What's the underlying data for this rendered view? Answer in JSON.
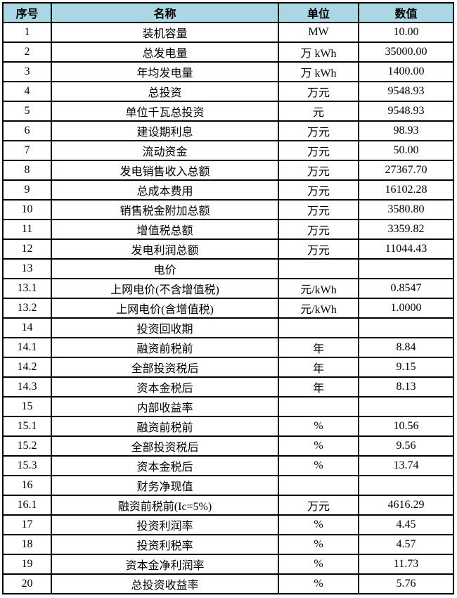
{
  "table": {
    "headers": [
      "序号",
      "名称",
      "单位",
      "数值"
    ],
    "rows": [
      {
        "no": "1",
        "name": "装机容量",
        "unit": "MW",
        "value": "10.00"
      },
      {
        "no": "2",
        "name": "总发电量",
        "unit": "万 kWh",
        "value": "35000.00"
      },
      {
        "no": "3",
        "name": "年均发电量",
        "unit": "万 kWh",
        "value": "1400.00"
      },
      {
        "no": "4",
        "name": "总投资",
        "unit": "万元",
        "value": "9548.93"
      },
      {
        "no": "5",
        "name": "单位千瓦总投资",
        "unit": "元",
        "value": "9548.93"
      },
      {
        "no": "6",
        "name": "建设期利息",
        "unit": "万元",
        "value": "98.93"
      },
      {
        "no": "7",
        "name": "流动资金",
        "unit": "万元",
        "value": "50.00"
      },
      {
        "no": "8",
        "name": "发电销售收入总额",
        "unit": "万元",
        "value": "27367.70"
      },
      {
        "no": "9",
        "name": "总成本费用",
        "unit": "万元",
        "value": "16102.28"
      },
      {
        "no": "10",
        "name": "销售税金附加总额",
        "unit": "万元",
        "value": "3580.80"
      },
      {
        "no": "11",
        "name": "增值税总额",
        "unit": "万元",
        "value": "3359.82"
      },
      {
        "no": "12",
        "name": "发电利润总额",
        "unit": "万元",
        "value": "11044.43"
      },
      {
        "no": "13",
        "name": "电价",
        "unit": "",
        "value": ""
      },
      {
        "no": "13.1",
        "name": "上网电价(不含增值税)",
        "unit": "元/kWh",
        "value": "0.8547"
      },
      {
        "no": "13.2",
        "name": "上网电价(含增值税)",
        "unit": "元/kWh",
        "value": "1.0000"
      },
      {
        "no": "14",
        "name": "投资回收期",
        "unit": "",
        "value": ""
      },
      {
        "no": "14.1",
        "name": "融资前税前",
        "unit": "年",
        "value": "8.84"
      },
      {
        "no": "14.2",
        "name": "全部投资税后",
        "unit": "年",
        "value": "9.15"
      },
      {
        "no": "14.3",
        "name": "资本金税后",
        "unit": "年",
        "value": "8.13"
      },
      {
        "no": "15",
        "name": "内部收益率",
        "unit": "",
        "value": ""
      },
      {
        "no": "15.1",
        "name": "融资前税前",
        "unit": "%",
        "value": "10.56"
      },
      {
        "no": "15.2",
        "name": "全部投资税后",
        "unit": "%",
        "value": "9.56"
      },
      {
        "no": "15.3",
        "name": "资本金税后",
        "unit": "%",
        "value": "13.74"
      },
      {
        "no": "16",
        "name": "财务净现值",
        "unit": "",
        "value": ""
      },
      {
        "no": "16.1",
        "name": "融资前税前(Ic=5%)",
        "unit": "万元",
        "value": "4616.29"
      },
      {
        "no": "17",
        "name": "投资利润率",
        "unit": "%",
        "value": "4.45"
      },
      {
        "no": "18",
        "name": "投资利税率",
        "unit": "%",
        "value": "4.57"
      },
      {
        "no": "19",
        "name": "资本金净利润率",
        "unit": "%",
        "value": "11.73"
      },
      {
        "no": "20",
        "name": "总投资收益率",
        "unit": "%",
        "value": "5.76"
      }
    ],
    "colors": {
      "header_bg": "#aad7e3",
      "border": "#000000",
      "text": "#000000",
      "page_bg": "#ffffff"
    }
  }
}
